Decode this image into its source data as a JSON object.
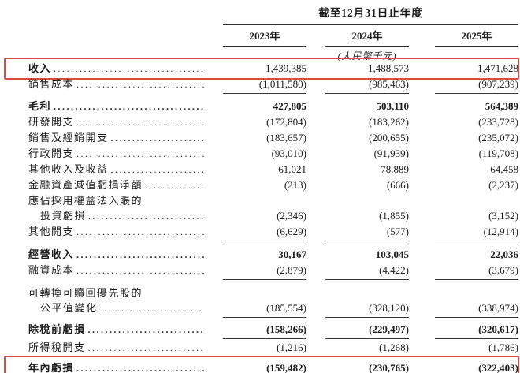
{
  "header": {
    "period_title": "截至12月31日止年度",
    "columns": [
      "2023年",
      "2024年",
      "2025年"
    ],
    "unit_note": "(人民幣千元)"
  },
  "accent": {
    "highlight_red": "#dd4a45",
    "rule_color": "#3a3a3a"
  },
  "table": {
    "rows": [
      {
        "label": "收入",
        "values": [
          "1,439,385",
          "1,488,573",
          "1,471,628"
        ]
      },
      {
        "label": "銷售成本",
        "values": [
          "(1,011,580)",
          "(985,463)",
          "(907,239)"
        ]
      },
      {
        "label": "毛利",
        "values": [
          "427,805",
          "503,110",
          "564,389"
        ]
      },
      {
        "label": "研發開支",
        "values": [
          "(172,804)",
          "(183,262)",
          "(233,728)"
        ]
      },
      {
        "label": "銷售及經銷開支",
        "values": [
          "(183,657)",
          "(200,655)",
          "(235,072)"
        ]
      },
      {
        "label": "行政開支",
        "values": [
          "(93,010)",
          "(91,939)",
          "(119,708)"
        ]
      },
      {
        "label": "其他收入及收益",
        "values": [
          "61,021",
          "78,889",
          "64,458"
        ]
      },
      {
        "label": "金融資產減值虧損淨額",
        "values": [
          "(213)",
          "(666)",
          "(2,237)"
        ]
      },
      {
        "label": "應佔採用權益法入賬的",
        "values": [
          "",
          "",
          ""
        ]
      },
      {
        "label": "投資虧損",
        "values": [
          "(2,346)",
          "(1,855)",
          "(3,152)"
        ]
      },
      {
        "label": "其他開支",
        "values": [
          "(6,629)",
          "(577)",
          "(12,914)"
        ]
      },
      {
        "label": "經營收入",
        "values": [
          "30,167",
          "103,045",
          "22,036"
        ]
      },
      {
        "label": "融資成本",
        "values": [
          "(2,879)",
          "(4,422)",
          "(3,679)"
        ]
      },
      {
        "label": "可轉換可贖回優先股的",
        "values": [
          "",
          "",
          ""
        ]
      },
      {
        "label": "公平值變化",
        "values": [
          "(185,554)",
          "(328,120)",
          "(338,974)"
        ]
      },
      {
        "label": "除稅前虧損",
        "values": [
          "(158,266)",
          "(229,497)",
          "(320,617)"
        ]
      },
      {
        "label": "所得稅開支",
        "values": [
          "(1,216)",
          "(1,268)",
          "(1,786)"
        ]
      },
      {
        "label": "年內虧損",
        "values": [
          "(159,482)",
          "(230,765)",
          "(322,403)"
        ]
      }
    ]
  }
}
